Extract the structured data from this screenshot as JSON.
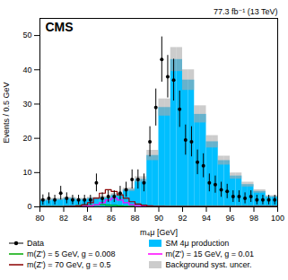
{
  "chart_data": {
    "type": "histogram",
    "xlabel": "m₄μ [GeV]",
    "ylabel": "Events / 0.5 GeV",
    "annotations": [
      "CMS",
      "77.3 fb⁻¹ (13 TeV)"
    ],
    "xlim": [
      80,
      100
    ],
    "ylim": [
      0,
      55
    ],
    "xticks": [
      80,
      82,
      84,
      86,
      88,
      90,
      92,
      94,
      96,
      98,
      100
    ],
    "yticks": [
      0,
      10,
      20,
      30,
      40,
      50
    ],
    "legend": "bottom",
    "bins": [
      80.0,
      80.5,
      81.0,
      81.5,
      82.0,
      82.5,
      83.0,
      83.5,
      84.0,
      84.5,
      85.0,
      85.5,
      86.0,
      86.5,
      87.0,
      87.5,
      88.0,
      88.5,
      89.0,
      89.5,
      90.0,
      90.5,
      91.0,
      91.5,
      92.0,
      92.5,
      93.0,
      93.5,
      94.0,
      94.5,
      95.0,
      95.5,
      96.0,
      96.5,
      97.0,
      97.5,
      98.0,
      98.5,
      99.0,
      99.5,
      100.0
    ],
    "series": [
      {
        "name": "Data",
        "type": "errorbar",
        "color": "black",
        "marker": "o",
        "x": [
          80.25,
          80.75,
          81.25,
          81.75,
          82.25,
          82.75,
          83.25,
          83.75,
          84.25,
          84.75,
          85.25,
          85.75,
          86.25,
          86.75,
          87.25,
          87.75,
          88.25,
          88.75,
          89.25,
          89.75,
          90.25,
          90.75,
          91.25,
          91.75,
          92.25,
          92.75,
          93.25,
          93.75,
          94.25,
          94.75,
          95.25,
          95.75,
          96.25,
          96.75,
          97.25,
          97.75,
          98.25,
          98.75,
          99.25,
          99.75
        ],
        "values": [
          2.0,
          2.5,
          2.0,
          4.0,
          2.5,
          2.0,
          2.0,
          2.0,
          2.0,
          7.0,
          2.5,
          3.0,
          3.0,
          4.0,
          5.0,
          8.0,
          8.0,
          7.0,
          19.0,
          29.0,
          43.0,
          38.0,
          37.0,
          28.5,
          19.5,
          19.0,
          13.0,
          12.0,
          7.0,
          6.5,
          5.0,
          4.5,
          3.0,
          3.0,
          2.5,
          3.0,
          2.0,
          2.0,
          2.0,
          2.0
        ],
        "errors": [
          1.5,
          1.6,
          1.4,
          2.0,
          1.6,
          1.4,
          1.4,
          1.4,
          1.4,
          2.6,
          1.6,
          1.7,
          1.7,
          2.0,
          2.2,
          2.8,
          2.8,
          2.6,
          4.4,
          5.4,
          6.6,
          6.2,
          6.1,
          5.3,
          4.4,
          4.4,
          3.6,
          3.5,
          2.6,
          2.5,
          2.2,
          2.1,
          1.7,
          1.7,
          1.6,
          1.7,
          1.4,
          1.4,
          1.4,
          1.4
        ]
      },
      {
        "name": "SM 4μ production",
        "type": "fill",
        "color": "#00BFFF",
        "values": [
          2.0,
          2.0,
          2.2,
          2.2,
          2.5,
          2.5,
          2.2,
          2.2,
          2.5,
          2.5,
          2.7,
          2.7,
          3.5,
          3.5,
          5.0,
          5.0,
          8.0,
          8.0,
          15.0,
          15.0,
          29.0,
          29.0,
          43.0,
          43.0,
          37.0,
          37.0,
          27.0,
          27.0,
          19.0,
          19.0,
          13.5,
          13.5,
          9.0,
          9.0,
          6.5,
          6.5,
          4.5,
          4.5,
          3.0,
          3.0
        ]
      },
      {
        "name": "m(Z') = 5 GeV, g = 0.008",
        "type": "step",
        "color": "#00AA00",
        "values": [
          0.2,
          0.2,
          0.2,
          0.2,
          0.2,
          0.2,
          0.3,
          0.3,
          0.4,
          0.5,
          0.6,
          0.5,
          0.4,
          0.3,
          0.2,
          0.2,
          0.2,
          0.2,
          0.2,
          0.2,
          0.2,
          0.2,
          0.2,
          0.2,
          0.2,
          0.2,
          0.2,
          0.2,
          0.2,
          0.2,
          0.2,
          0.2,
          0.2,
          0.2,
          0.2,
          0.2,
          0.2,
          0.2,
          0.2,
          0.2
        ]
      },
      {
        "name": "m(Z') = 15 GeV, g = 0.01",
        "type": "step",
        "color": "#FF00FF",
        "values": [
          0.05,
          0.05,
          0.05,
          0.05,
          0.05,
          0.05,
          0.1,
          0.15,
          0.3,
          0.6,
          1.2,
          2.0,
          2.5,
          2.0,
          1.2,
          0.6,
          0.3,
          0.15,
          0.1,
          0.07,
          0.05,
          0.05,
          0.05,
          0.05,
          0.05,
          0.05,
          0.05,
          0.05,
          0.05,
          0.05,
          0.05,
          0.05,
          0.05,
          0.05,
          0.05,
          0.05,
          0.05,
          0.05,
          0.05,
          0.05
        ]
      },
      {
        "name": "m(Z') = 70 GeV, g = 0.5",
        "type": "step",
        "color": "#8B0000",
        "values": [
          0.05,
          0.05,
          0.05,
          0.05,
          0.1,
          0.15,
          0.3,
          0.6,
          1.2,
          2.5,
          4.0,
          5.0,
          4.5,
          3.5,
          2.5,
          1.5,
          0.8,
          0.5,
          0.3,
          0.2,
          0.15,
          0.1,
          0.1,
          0.1,
          0.1,
          0.1,
          0.1,
          0.1,
          0.1,
          0.1,
          0.1,
          0.1,
          0.1,
          0.1,
          0.1,
          0.1,
          0.1,
          0.1,
          0.1,
          0.1
        ]
      },
      {
        "name": "Background syst. uncer.",
        "type": "band",
        "color": "#AAAAAA",
        "values": [
          2.0,
          2.0,
          2.2,
          2.2,
          2.5,
          2.5,
          2.2,
          2.2,
          2.5,
          2.5,
          2.7,
          2.7,
          3.5,
          3.5,
          5.0,
          5.0,
          8.0,
          8.0,
          15.0,
          15.0,
          29.0,
          29.0,
          43.0,
          43.0,
          37.0,
          37.0,
          27.0,
          27.0,
          19.0,
          19.0,
          13.5,
          13.5,
          9.0,
          9.0,
          6.5,
          6.5,
          4.5,
          4.5,
          3.0,
          3.0
        ],
        "errors": [
          0.3,
          0.3,
          0.3,
          0.3,
          0.3,
          0.3,
          0.3,
          0.3,
          0.3,
          0.3,
          0.3,
          0.3,
          0.4,
          0.4,
          0.5,
          0.5,
          0.8,
          0.8,
          1.5,
          1.5,
          2.5,
          2.5,
          3.5,
          3.5,
          3.0,
          3.0,
          2.5,
          2.5,
          1.8,
          1.8,
          1.3,
          1.3,
          0.9,
          0.9,
          0.7,
          0.7,
          0.5,
          0.5,
          0.3,
          0.3
        ]
      }
    ]
  }
}
